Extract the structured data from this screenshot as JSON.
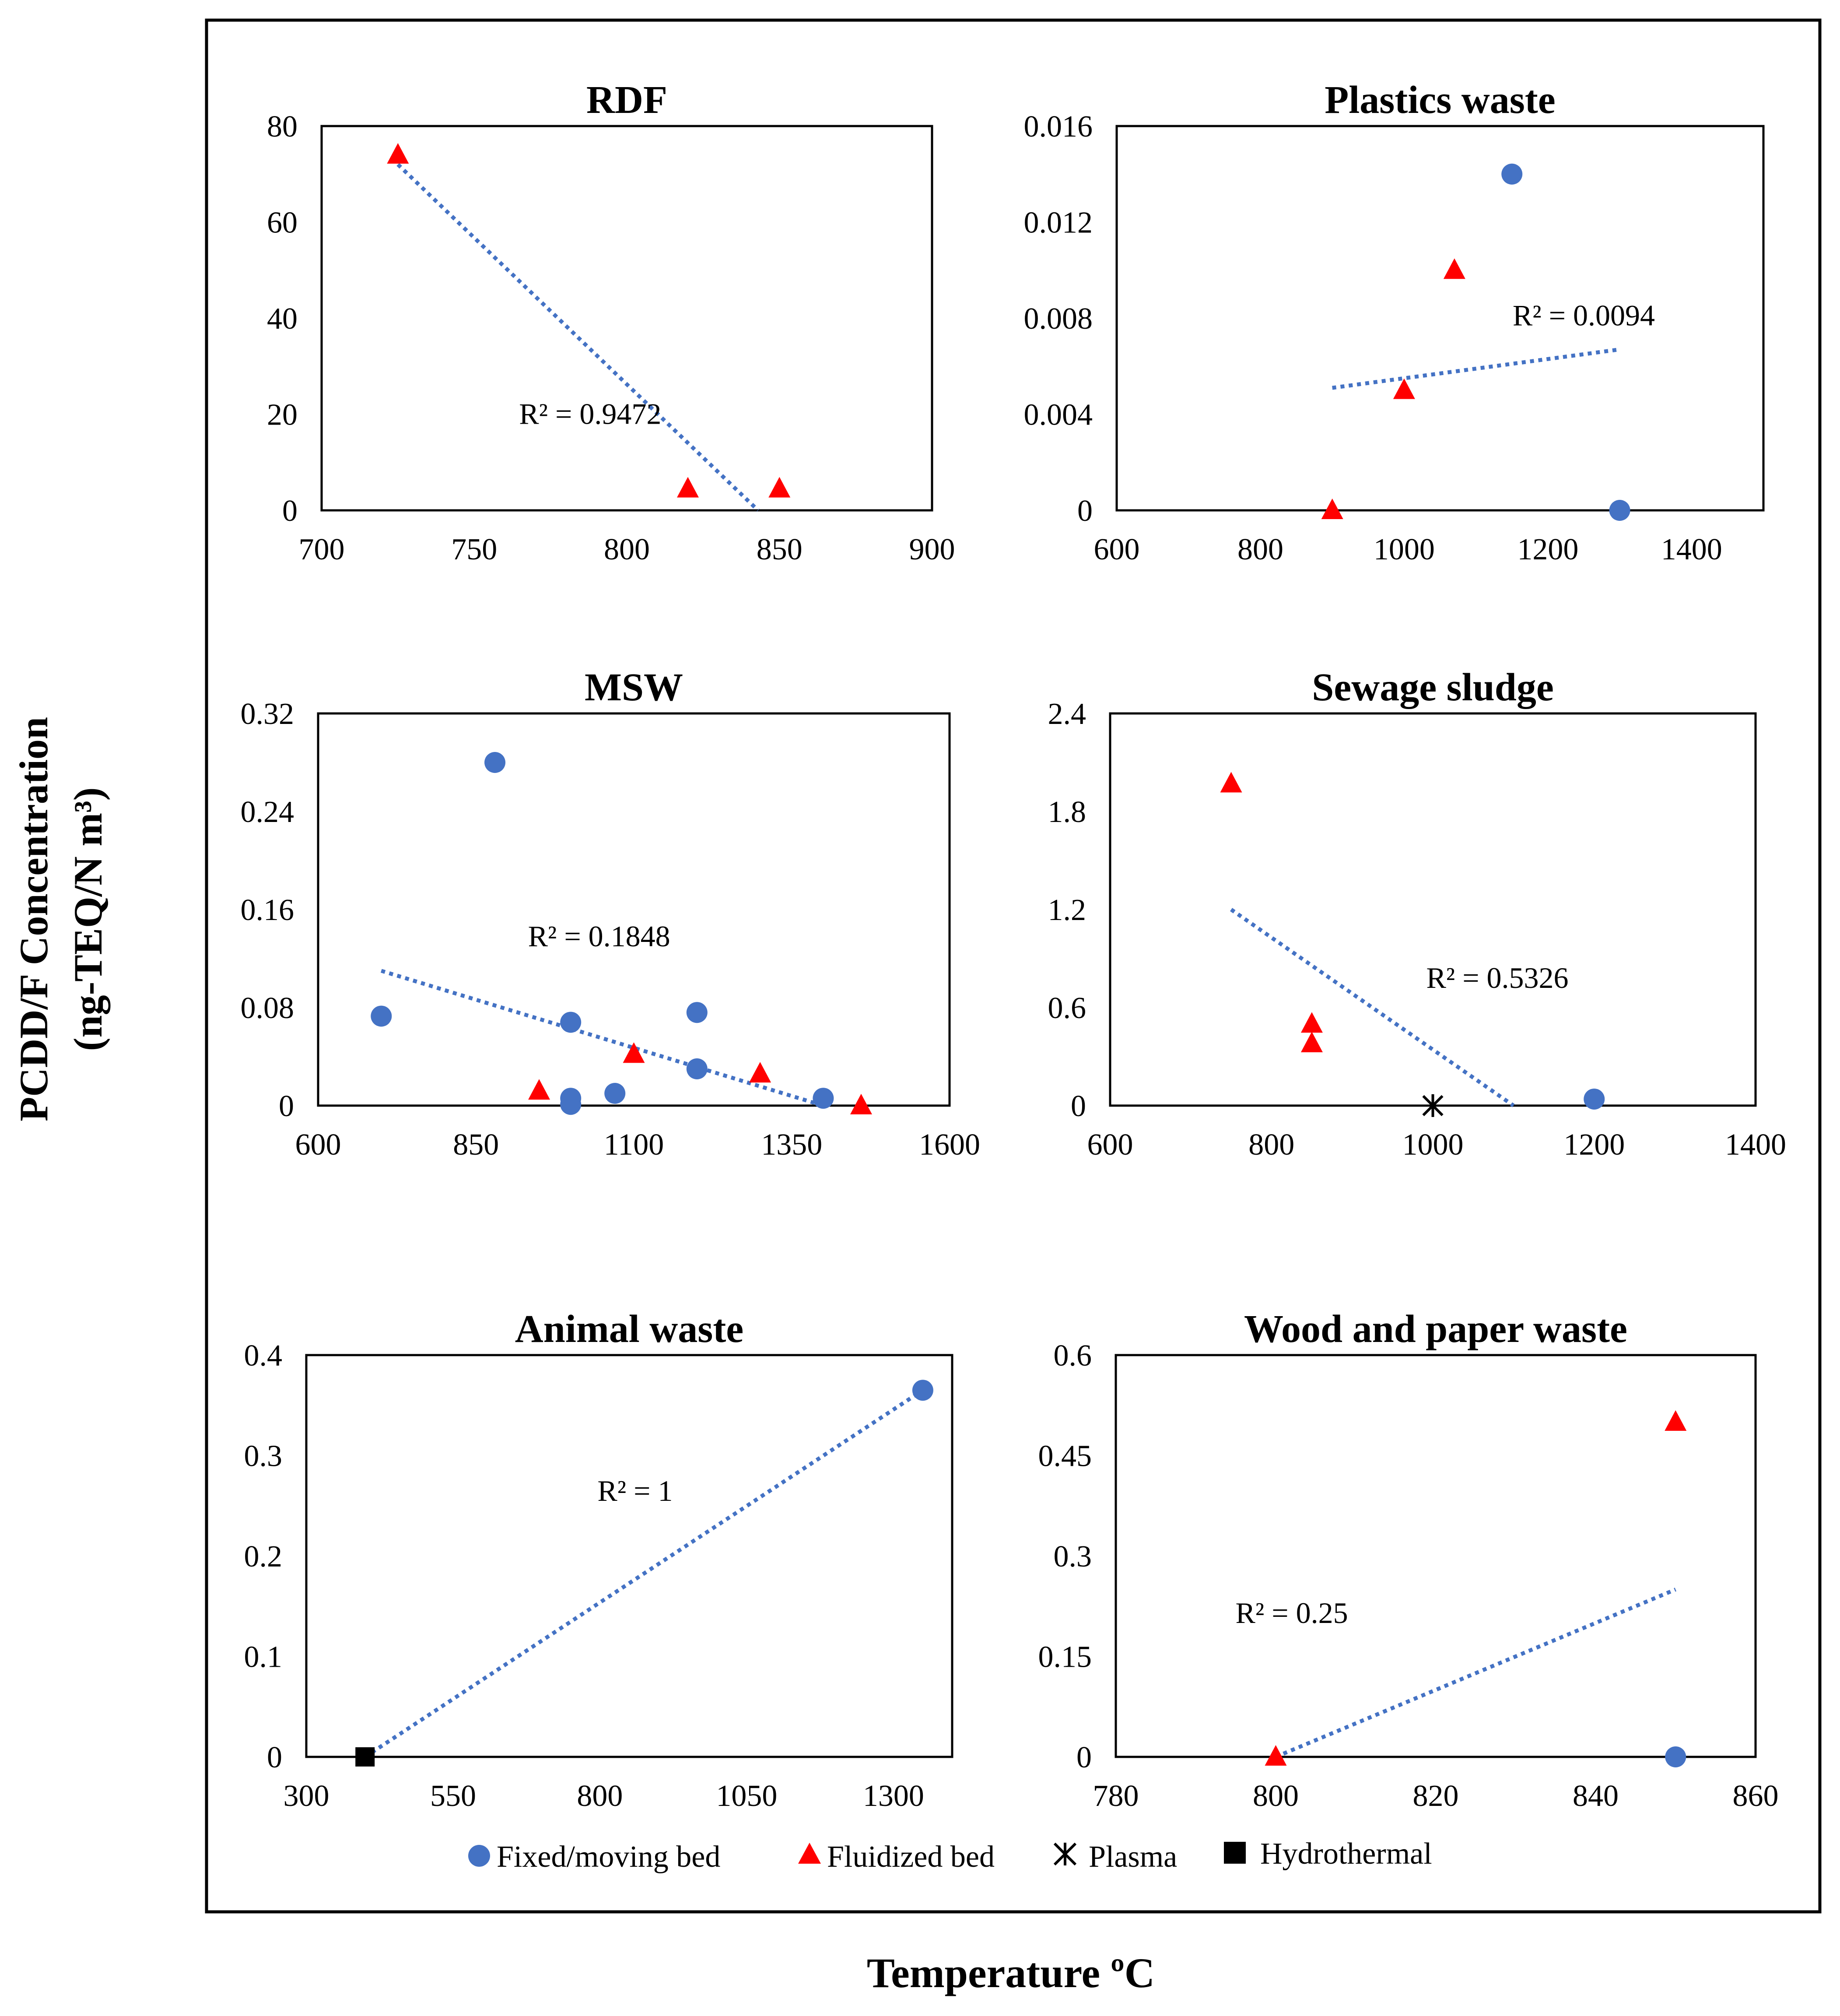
{
  "figure": {
    "ylabel_line1": "PCDD/F Concentration",
    "ylabel_line2": "(ng-TEQ/N m³)",
    "xlabel": "Temperature ºC"
  },
  "legend": [
    {
      "label": "Fixed/moving bed",
      "marker": "circle",
      "color": "#4472c4"
    },
    {
      "label": "Fluidized bed",
      "marker": "triangle",
      "color": "#ff0000"
    },
    {
      "label": "Plasma",
      "marker": "asterisk",
      "color": "#000000"
    },
    {
      "label": "Hydrothermal",
      "marker": "square",
      "color": "#000000"
    }
  ],
  "colors": {
    "fixed": "#4472c4",
    "fluidized": "#ff0000",
    "plasma": "#000000",
    "hydrothermal": "#000000",
    "trend": "#4472c4",
    "frame": "#000000"
  },
  "chart_data": [
    {
      "type": "scatter",
      "title": "RDF",
      "xlim": [
        700,
        900
      ],
      "xticks": [
        700,
        750,
        800,
        850,
        900
      ],
      "ylim": [
        0,
        80
      ],
      "yticks": [
        0,
        20,
        40,
        60,
        80
      ],
      "ytick_labels": [
        "0",
        "20",
        "40",
        "60",
        "80"
      ],
      "series": [
        {
          "name": "Fluidized bed",
          "points": [
            [
              725,
              74
            ],
            [
              820,
              4.5
            ],
            [
              850,
              4.5
            ]
          ]
        }
      ],
      "trend": {
        "x": [
          725,
          843
        ],
        "y": [
          72,
          0
        ]
      },
      "r2": "R² = 0.9472",
      "r2_at": [
        788,
        18
      ]
    },
    {
      "type": "scatter",
      "title": "Plastics waste",
      "xlim": [
        600,
        1500
      ],
      "xticks": [
        600,
        800,
        1000,
        1200,
        1400
      ],
      "ylim": [
        0,
        0.016
      ],
      "yticks": [
        0,
        0.004,
        0.008,
        0.012,
        0.016
      ],
      "ytick_labels": [
        "0",
        "0.004",
        "0.008",
        "0.012",
        "0.016"
      ],
      "series": [
        {
          "name": "Fixed/moving bed",
          "points": [
            [
              1150,
              0.014
            ],
            [
              1300,
              0.0
            ]
          ]
        },
        {
          "name": "Fluidized bed",
          "points": [
            [
              900,
              0.0
            ],
            [
              1000,
              0.005
            ],
            [
              1070,
              0.01
            ]
          ]
        }
      ],
      "trend": {
        "x": [
          900,
          1300
        ],
        "y": [
          0.0051,
          0.0067
        ]
      },
      "r2": "R² = 0.0094",
      "r2_at": [
        1250,
        0.0077
      ]
    },
    {
      "type": "scatter",
      "title": "MSW",
      "xlim": [
        600,
        1600
      ],
      "xticks": [
        600,
        850,
        1100,
        1350,
        1600
      ],
      "ylim": [
        0,
        0.32
      ],
      "yticks": [
        0,
        0.08,
        0.16,
        0.24,
        0.32
      ],
      "ytick_labels": [
        "0",
        "0.08",
        "0.16",
        "0.24",
        "0.32"
      ],
      "series": [
        {
          "name": "Fixed/moving bed",
          "points": [
            [
              700,
              0.073
            ],
            [
              880,
              0.28
            ],
            [
              1000,
              0.068
            ],
            [
              1000,
              0.006
            ],
            [
              1000,
              0.001
            ],
            [
              1070,
              0.01
            ],
            [
              1200,
              0.076
            ],
            [
              1200,
              0.03
            ],
            [
              1400,
              0.006
            ]
          ]
        },
        {
          "name": "Fluidized bed",
          "points": [
            [
              950,
              0.012
            ],
            [
              1100,
              0.042
            ],
            [
              1300,
              0.026
            ],
            [
              1460,
              0.0
            ]
          ]
        }
      ],
      "trend": {
        "x": [
          700,
          1400
        ],
        "y": [
          0.11,
          0.0
        ]
      },
      "r2": "R² = 0.1848",
      "r2_at": [
        1045,
        0.13
      ]
    },
    {
      "type": "scatter",
      "title": "Sewage sludge",
      "xlim": [
        600,
        1400
      ],
      "xticks": [
        600,
        800,
        1000,
        1200,
        1400
      ],
      "ylim": [
        0,
        2.4
      ],
      "yticks": [
        0,
        0.6,
        1.2,
        1.8,
        2.4
      ],
      "ytick_labels": [
        "0",
        "0.6",
        "1.2",
        "1.8",
        "2.4"
      ],
      "series": [
        {
          "name": "Fixed/moving bed",
          "points": [
            [
              1200,
              0.04
            ]
          ]
        },
        {
          "name": "Fluidized bed",
          "points": [
            [
              750,
              1.97
            ],
            [
              850,
              0.5
            ],
            [
              850,
              0.38
            ]
          ]
        },
        {
          "name": "Plasma",
          "points": [
            [
              1000,
              0.0
            ]
          ]
        }
      ],
      "trend": {
        "x": [
          750,
          1100
        ],
        "y": [
          1.2,
          0.0
        ]
      },
      "r2": "R² = 0.5326",
      "r2_at": [
        1080,
        0.72
      ]
    },
    {
      "type": "scatter",
      "title": "Animal waste",
      "xlim": [
        300,
        1400
      ],
      "xticks": [
        300,
        550,
        800,
        1050,
        1300
      ],
      "ylim": [
        0,
        0.4
      ],
      "yticks": [
        0,
        0.1,
        0.2,
        0.3,
        0.4
      ],
      "ytick_labels": [
        "0",
        "0.1",
        "0.2",
        "0.3",
        "0.4"
      ],
      "series": [
        {
          "name": "Fixed/moving bed",
          "points": [
            [
              1350,
              0.365
            ]
          ]
        },
        {
          "name": "Hydrothermal",
          "points": [
            [
              400,
              0.0
            ]
          ]
        }
      ],
      "trend": {
        "x": [
          400,
          1350
        ],
        "y": [
          0.0,
          0.365
        ]
      },
      "r2": "R² = 1",
      "r2_at": [
        860,
        0.255
      ]
    },
    {
      "type": "scatter",
      "title": "Wood and paper waste",
      "xlim": [
        780,
        860
      ],
      "xticks": [
        780,
        800,
        820,
        840,
        860
      ],
      "ylim": [
        0,
        0.6
      ],
      "yticks": [
        0,
        0.15,
        0.3,
        0.45,
        0.6
      ],
      "ytick_labels": [
        "0",
        "0.15",
        "0.3",
        "0.45",
        "0.6"
      ],
      "series": [
        {
          "name": "Fixed/moving bed",
          "points": [
            [
              850,
              0.0
            ]
          ]
        },
        {
          "name": "Fluidized bed",
          "points": [
            [
              800,
              0.0
            ],
            [
              850,
              0.5
            ]
          ]
        }
      ],
      "trend": {
        "x": [
          800,
          850
        ],
        "y": [
          0.0,
          0.25
        ]
      },
      "r2": "R² = 0.25",
      "r2_at": [
        802,
        0.2
      ]
    }
  ]
}
